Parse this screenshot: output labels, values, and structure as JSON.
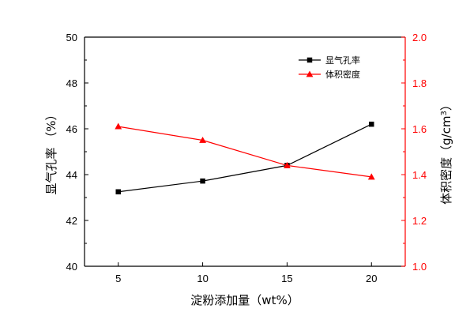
{
  "chart_data": {
    "type": "line",
    "categories": [
      "5",
      "10",
      "15",
      "20"
    ],
    "x": [
      5,
      10,
      15,
      20
    ],
    "xlabel": "淀粉添加量（wt%）",
    "xlim": [
      3,
      22
    ],
    "x_ticks": [
      "5",
      "10",
      "15",
      "20"
    ],
    "y_left": {
      "label": "显气孔率 （%）",
      "lim": [
        40,
        50
      ],
      "ticks": [
        "40",
        "42",
        "44",
        "46",
        "48",
        "50"
      ],
      "color": "#000000"
    },
    "y_right": {
      "label_main": "体积密度（g/cm",
      "label_sup": "3",
      "label_close": "）",
      "lim": [
        1.0,
        2.0
      ],
      "ticks": [
        "1.0",
        "1.2",
        "1.4",
        "1.6",
        "1.8",
        "2.0"
      ],
      "color": "#ff0000"
    },
    "series": [
      {
        "name": "显气孔率",
        "axis": "left",
        "marker": "square",
        "color": "#000000",
        "values": [
          43.25,
          43.72,
          44.4,
          46.2
        ]
      },
      {
        "name": "体积密度",
        "axis": "right",
        "marker": "triangle",
        "color": "#ff0000",
        "values": [
          1.61,
          1.55,
          1.44,
          1.39
        ]
      }
    ],
    "legend": {
      "placement": "top-right"
    },
    "grid": false
  }
}
